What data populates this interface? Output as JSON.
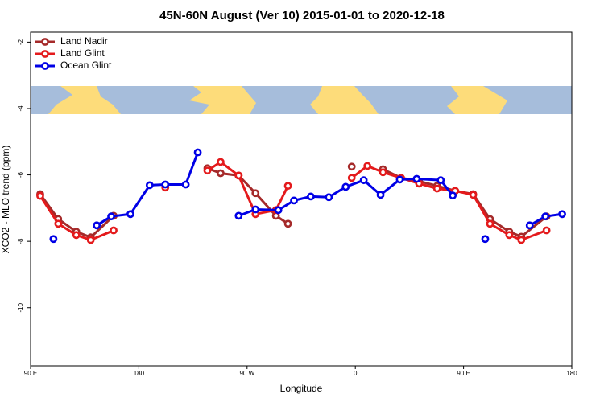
{
  "chart_data": {
    "type": "line",
    "title": "45N-60N August (Ver 10)   2015-01-01 to 2020-12-18",
    "x_label": "Longitude",
    "y_label": "XCO2 - MLO trend (ppm)",
    "xlim": [
      90,
      540
    ],
    "xticks": [
      {
        "value": 90,
        "label": "90 E"
      },
      180,
      {
        "value": 270,
        "label": "90 W"
      },
      {
        "value": 360,
        "label": "0"
      },
      {
        "value": 450,
        "label": "90 E"
      },
      {
        "value": 540,
        "label": "180"
      }
    ],
    "ylim": [
      -11.75,
      -1.7
    ],
    "yticks": [
      -2,
      -4,
      -6,
      -8,
      -10
    ],
    "legend": "top-left",
    "series": [
      {
        "name": "Land Nadir",
        "color": "#a52a2a",
        "x": [
          98,
          113,
          128,
          140,
          159,
          237,
          248,
          263,
          277,
          294,
          304,
          357,
          383,
          398,
          413,
          428,
          443,
          458,
          472,
          488,
          498,
          519
        ],
        "values": [
          -6.58,
          -7.33,
          -7.71,
          -7.88,
          -7.23,
          -5.8,
          -5.95,
          -6.02,
          -6.55,
          -7.23,
          -7.47,
          -5.75,
          -5.83,
          -6.09,
          -6.19,
          -6.33,
          -6.48,
          -6.58,
          -7.33,
          -7.71,
          -7.86,
          -7.25
        ]
      },
      {
        "name": "Land Glint",
        "color": "#e41a1c",
        "x": [
          98,
          113,
          128,
          140,
          159,
          202,
          237,
          248,
          263,
          277,
          294,
          304,
          357,
          370,
          383,
          398,
          413,
          428,
          443,
          458,
          472,
          488,
          498,
          519
        ],
        "values": [
          -6.63,
          -7.47,
          -7.81,
          -7.96,
          -7.67,
          -6.38,
          -5.87,
          -5.61,
          -6.02,
          -7.18,
          -7.06,
          -6.33,
          -6.09,
          -5.73,
          -5.92,
          -6.09,
          -6.26,
          -6.41,
          -6.48,
          -6.6,
          -7.47,
          -7.81,
          -7.96,
          -7.67
        ]
      },
      {
        "name": "Ocean Glint",
        "color": "#0000e6",
        "x": [
          109,
          145,
          157,
          173,
          189,
          202,
          219,
          229,
          263,
          277,
          296,
          309,
          323,
          338,
          352,
          367,
          381,
          397,
          411,
          431,
          441,
          468,
          505,
          518,
          532
        ],
        "values": [
          -7.93,
          -7.52,
          -7.25,
          -7.18,
          -6.31,
          -6.29,
          -6.29,
          -5.32,
          -7.23,
          -7.04,
          -7.06,
          -6.77,
          -6.65,
          -6.67,
          -6.36,
          -6.16,
          -6.6,
          -6.14,
          -6.12,
          -6.16,
          -6.62,
          -7.93,
          -7.52,
          -7.25,
          -7.18
        ]
      }
    ]
  }
}
